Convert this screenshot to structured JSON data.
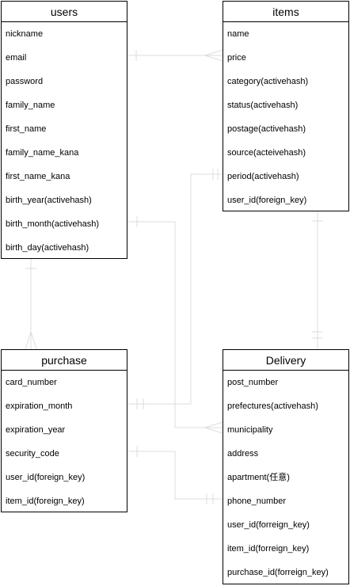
{
  "entities": {
    "users": {
      "title": "users",
      "attributes": [
        "nickname",
        "email",
        "password",
        "family_name",
        "first_name",
        "family_name_kana",
        "first_name_kana",
        "birth_year(activehash)",
        "birth_month(activehash)",
        "birth_day(activehash)"
      ]
    },
    "items": {
      "title": "items",
      "attributes": [
        "name",
        "price",
        "category(activehash)",
        "status(activehash)",
        "postage(activehash)",
        "source(acteivehash)",
        "period(activehash)",
        "user_id(foreign_key)"
      ]
    },
    "purchase": {
      "title": "purchase",
      "attributes": [
        "card_number",
        "expiration_month",
        "expiration_year",
        "security_code",
        "user_id(foreign_key)",
        "item_id(foreign_key)"
      ]
    },
    "delivery": {
      "title": "Delivery",
      "attributes": [
        "post_number",
        "prefectures(activehash)",
        "municipality",
        "address",
        "apartment(任意)",
        "phone_number",
        "user_id(forreign_key)",
        "item_id(forreign_key)",
        "purchase_id(forreign_key)"
      ]
    }
  },
  "relationships": [
    {
      "from": "users",
      "to": "items",
      "from_end": "one",
      "to_end": "many"
    },
    {
      "from": "users",
      "to": "purchase",
      "from_end": "one",
      "to_end": "many"
    },
    {
      "from": "items",
      "to": "delivery",
      "from_end": "one",
      "to_end": "one"
    },
    {
      "from": "items",
      "to": "purchase",
      "from_end": "one",
      "to_end": "one"
    },
    {
      "from": "users",
      "to": "delivery",
      "from_end": "one",
      "to_end": "many"
    },
    {
      "from": "purchase",
      "to": "delivery",
      "from_end": "one",
      "to_end": "one"
    }
  ],
  "colors": {
    "border": "#000000",
    "connector": "#e0e0e0",
    "text": "#000000"
  }
}
